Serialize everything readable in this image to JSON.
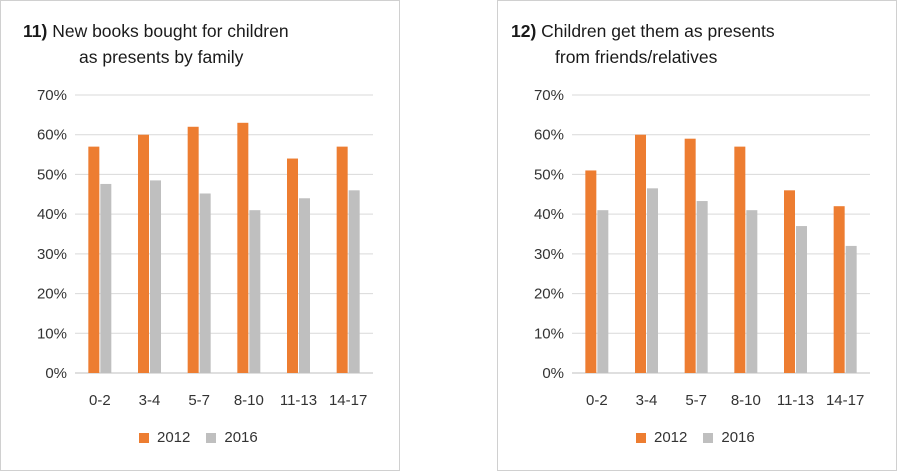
{
  "chart_data": [
    {
      "type": "bar",
      "title_number": "11)",
      "title_line1": "New books bought for children",
      "title_line2": "as presents by family",
      "categories": [
        "0-2",
        "3-4",
        "5-7",
        "8-10",
        "11-13",
        "14-17"
      ],
      "series": [
        {
          "name": "2012",
          "color": "#ED7D31",
          "values": [
            57,
            60,
            62,
            63,
            54,
            57
          ]
        },
        {
          "name": "2016",
          "color": "#BFBFBF",
          "values": [
            47.6,
            48.5,
            45.2,
            41,
            44,
            46
          ]
        }
      ],
      "yticks": [
        "0%",
        "10%",
        "20%",
        "30%",
        "40%",
        "50%",
        "60%",
        "70%"
      ],
      "ylim": [
        0,
        70
      ],
      "grid": true,
      "legend_position": "bottom"
    },
    {
      "type": "bar",
      "title_number": "12)",
      "title_line1": "Children get them as presents",
      "title_line2": "from friends/relatives",
      "categories": [
        "0-2",
        "3-4",
        "5-7",
        "8-10",
        "11-13",
        "14-17"
      ],
      "series": [
        {
          "name": "2012",
          "color": "#ED7D31",
          "values": [
            51,
            60,
            59,
            57,
            46,
            42
          ]
        },
        {
          "name": "2016",
          "color": "#BFBFBF",
          "values": [
            41,
            46.5,
            43.3,
            41,
            37,
            32
          ]
        }
      ],
      "yticks": [
        "0%",
        "10%",
        "20%",
        "30%",
        "40%",
        "50%",
        "60%",
        "70%"
      ],
      "ylim": [
        0,
        70
      ],
      "grid": true,
      "legend_position": "bottom"
    }
  ]
}
